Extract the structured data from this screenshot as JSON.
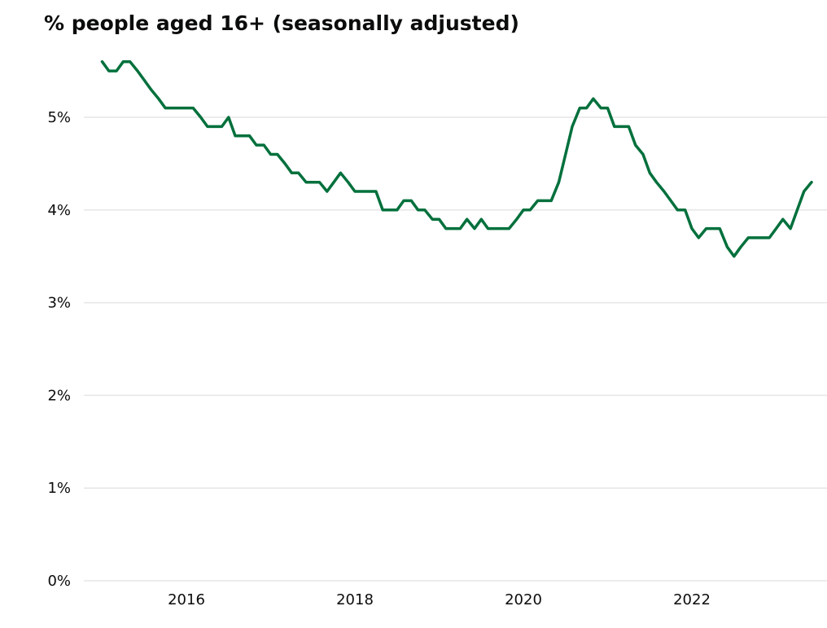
{
  "chart_data": {
    "type": "line",
    "title": "% people aged 16+ (seasonally adjusted)",
    "xlabel": "",
    "ylabel": "",
    "ylim": [
      0,
      5.7
    ],
    "xlim": [
      2014.9,
      2023.55
    ],
    "yticks": [
      {
        "value": 0,
        "label": "0%"
      },
      {
        "value": 1,
        "label": "1%"
      },
      {
        "value": 2,
        "label": "2%"
      },
      {
        "value": 3,
        "label": "3%"
      },
      {
        "value": 4,
        "label": "4%"
      },
      {
        "value": 5,
        "label": "5%"
      }
    ],
    "xticks": [
      {
        "value": 2016,
        "label": "2016"
      },
      {
        "value": 2018,
        "label": "2018"
      },
      {
        "value": 2020,
        "label": "2020"
      },
      {
        "value": 2022,
        "label": "2022"
      }
    ],
    "grid": "horizontal",
    "series_color": "#00703c",
    "grid_color": "#e6e6e6",
    "series": [
      {
        "points": [
          [
            2015.0,
            5.6
          ],
          [
            2015.08,
            5.5
          ],
          [
            2015.17,
            5.5
          ],
          [
            2015.25,
            5.6
          ],
          [
            2015.33,
            5.6
          ],
          [
            2015.42,
            5.5
          ],
          [
            2015.5,
            5.4
          ],
          [
            2015.58,
            5.3
          ],
          [
            2015.67,
            5.2
          ],
          [
            2015.75,
            5.1
          ],
          [
            2015.83,
            5.1
          ],
          [
            2015.92,
            5.1
          ],
          [
            2016.0,
            5.1
          ],
          [
            2016.08,
            5.1
          ],
          [
            2016.17,
            5.0
          ],
          [
            2016.25,
            4.9
          ],
          [
            2016.33,
            4.9
          ],
          [
            2016.42,
            4.9
          ],
          [
            2016.5,
            5.0
          ],
          [
            2016.58,
            4.8
          ],
          [
            2016.67,
            4.8
          ],
          [
            2016.75,
            4.8
          ],
          [
            2016.83,
            4.7
          ],
          [
            2016.92,
            4.7
          ],
          [
            2017.0,
            4.6
          ],
          [
            2017.08,
            4.6
          ],
          [
            2017.17,
            4.5
          ],
          [
            2017.25,
            4.4
          ],
          [
            2017.33,
            4.4
          ],
          [
            2017.42,
            4.3
          ],
          [
            2017.5,
            4.3
          ],
          [
            2017.58,
            4.3
          ],
          [
            2017.67,
            4.2
          ],
          [
            2017.75,
            4.3
          ],
          [
            2017.83,
            4.4
          ],
          [
            2017.92,
            4.3
          ],
          [
            2018.0,
            4.2
          ],
          [
            2018.08,
            4.2
          ],
          [
            2018.17,
            4.2
          ],
          [
            2018.25,
            4.2
          ],
          [
            2018.33,
            4.0
          ],
          [
            2018.42,
            4.0
          ],
          [
            2018.5,
            4.0
          ],
          [
            2018.58,
            4.1
          ],
          [
            2018.67,
            4.1
          ],
          [
            2018.75,
            4.0
          ],
          [
            2018.83,
            4.0
          ],
          [
            2018.92,
            3.9
          ],
          [
            2019.0,
            3.9
          ],
          [
            2019.08,
            3.8
          ],
          [
            2019.17,
            3.8
          ],
          [
            2019.25,
            3.8
          ],
          [
            2019.33,
            3.9
          ],
          [
            2019.42,
            3.8
          ],
          [
            2019.5,
            3.9
          ],
          [
            2019.58,
            3.8
          ],
          [
            2019.67,
            3.8
          ],
          [
            2019.75,
            3.8
          ],
          [
            2019.83,
            3.8
          ],
          [
            2019.92,
            3.9
          ],
          [
            2020.0,
            4.0
          ],
          [
            2020.08,
            4.0
          ],
          [
            2020.17,
            4.1
          ],
          [
            2020.25,
            4.1
          ],
          [
            2020.33,
            4.1
          ],
          [
            2020.42,
            4.3
          ],
          [
            2020.5,
            4.6
          ],
          [
            2020.58,
            4.9
          ],
          [
            2020.67,
            5.1
          ],
          [
            2020.75,
            5.1
          ],
          [
            2020.83,
            5.2
          ],
          [
            2020.92,
            5.1
          ],
          [
            2021.0,
            5.1
          ],
          [
            2021.08,
            4.9
          ],
          [
            2021.17,
            4.9
          ],
          [
            2021.25,
            4.9
          ],
          [
            2021.33,
            4.7
          ],
          [
            2021.42,
            4.6
          ],
          [
            2021.5,
            4.4
          ],
          [
            2021.58,
            4.3
          ],
          [
            2021.67,
            4.2
          ],
          [
            2021.75,
            4.1
          ],
          [
            2021.83,
            4.0
          ],
          [
            2021.92,
            4.0
          ],
          [
            2022.0,
            3.8
          ],
          [
            2022.08,
            3.7
          ],
          [
            2022.17,
            3.8
          ],
          [
            2022.25,
            3.8
          ],
          [
            2022.33,
            3.8
          ],
          [
            2022.42,
            3.6
          ],
          [
            2022.5,
            3.5
          ],
          [
            2022.58,
            3.6
          ],
          [
            2022.67,
            3.7
          ],
          [
            2022.75,
            3.7
          ],
          [
            2022.83,
            3.7
          ],
          [
            2022.92,
            3.7
          ],
          [
            2023.0,
            3.8
          ],
          [
            2023.08,
            3.9
          ],
          [
            2023.17,
            3.8
          ],
          [
            2023.25,
            4.0
          ],
          [
            2023.33,
            4.2
          ],
          [
            2023.42,
            4.3
          ]
        ]
      }
    ]
  }
}
